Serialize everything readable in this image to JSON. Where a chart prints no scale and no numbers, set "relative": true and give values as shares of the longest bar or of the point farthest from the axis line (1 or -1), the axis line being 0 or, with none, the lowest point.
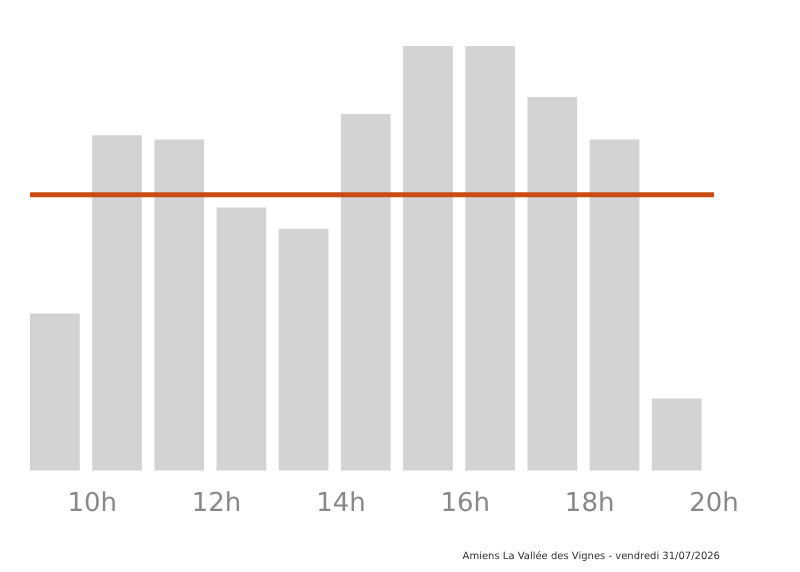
{
  "chart_data": {
    "type": "bar",
    "relative": true,
    "x": [
      9.4,
      10.4,
      11.4,
      12.4,
      13.4,
      14.4,
      15.4,
      16.4,
      17.4,
      18.4,
      19.4
    ],
    "values": [
      0.37,
      0.79,
      0.78,
      0.62,
      0.57,
      0.84,
      1,
      1,
      0.88,
      0.78,
      0.17
    ],
    "color": "#d3d3d3",
    "xlim": [
      9,
      20
    ],
    "xticks": [
      {
        "value": 10,
        "label": "10h"
      },
      {
        "value": 12,
        "label": "12h"
      },
      {
        "value": 14,
        "label": "14h"
      },
      {
        "value": 16,
        "label": "16h"
      },
      {
        "value": 18,
        "label": "18h"
      },
      {
        "value": 20,
        "label": "20h"
      }
    ],
    "ref_lines": [
      {
        "axis": "y",
        "value": 0.65,
        "color": "#cc4a14"
      }
    ],
    "annotations": [
      "Amiens La Vallée des Vignes - vendredi 31/07/2026"
    ],
    "grid": false,
    "legend": false
  }
}
